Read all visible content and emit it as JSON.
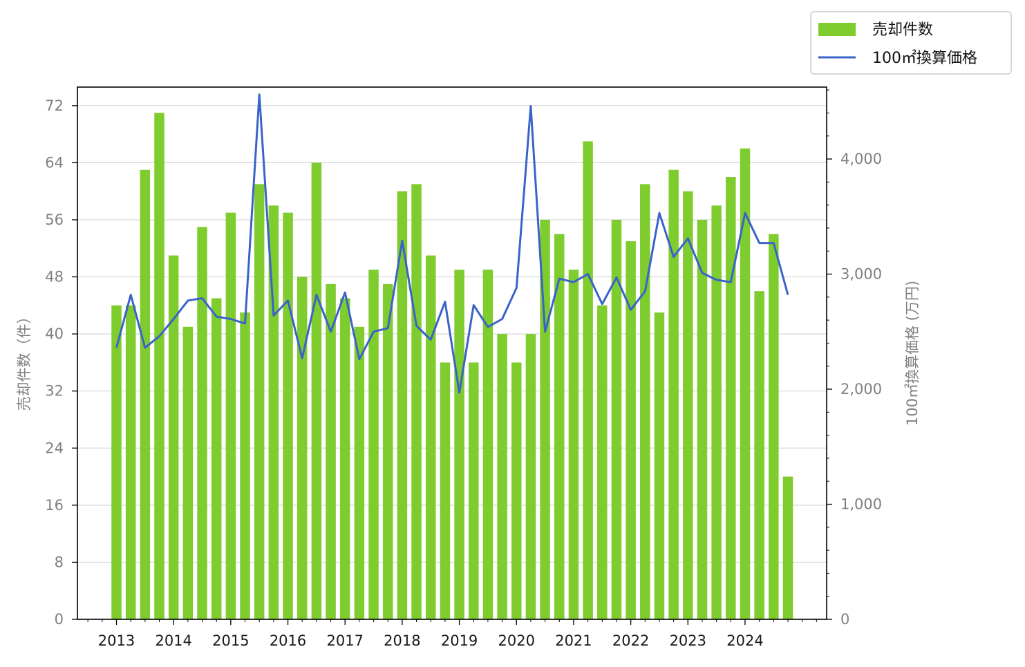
{
  "chart_data": {
    "type": "bar",
    "title": "",
    "xlabel": "",
    "ylabel_left": "売却件数（件）",
    "ylabel_right": "100㎡換算価格 (万円)",
    "x_tick_labels": [
      "2013",
      "2014",
      "2015",
      "2016",
      "2017",
      "2018",
      "2019",
      "2020",
      "2021",
      "2022",
      "2023",
      "2024"
    ],
    "left_ticks": [
      "0",
      "8",
      "16",
      "24",
      "32",
      "40",
      "48",
      "56",
      "64",
      "72"
    ],
    "right_ticks": [
      "0",
      "1,000",
      "2,000",
      "3,000",
      "4,000"
    ],
    "ylim_left": [
      0,
      74.6
    ],
    "ylim_right": [
      0,
      4625
    ],
    "grid": "horizontal",
    "legend_position": "top-right outside",
    "colors": {
      "bar": "#7fcc2e",
      "line": "#3a63c9"
    },
    "periods": [
      "2013Q1",
      "2013Q2",
      "2013Q3",
      "2013Q4",
      "2014Q1",
      "2014Q2",
      "2014Q3",
      "2014Q4",
      "2015Q1",
      "2015Q2",
      "2015Q3",
      "2015Q4",
      "2016Q1",
      "2016Q2",
      "2016Q3",
      "2016Q4",
      "2017Q1",
      "2017Q2",
      "2017Q3",
      "2017Q4",
      "2018Q1",
      "2018Q2",
      "2018Q3",
      "2018Q4",
      "2019Q1",
      "2019Q2",
      "2019Q3",
      "2019Q4",
      "2020Q1",
      "2020Q2",
      "2020Q3",
      "2020Q4",
      "2021Q1",
      "2021Q2",
      "2021Q3",
      "2021Q4",
      "2022Q1",
      "2022Q2",
      "2022Q3",
      "2022Q4",
      "2023Q1",
      "2023Q2",
      "2023Q3",
      "2023Q4",
      "2024Q1",
      "2024Q2",
      "2024Q3",
      "2024Q4"
    ],
    "series": [
      {
        "name": "売却件数",
        "type": "bar",
        "axis": "left",
        "values": [
          44,
          44,
          63,
          71,
          51,
          41,
          55,
          45,
          57,
          43,
          61,
          58,
          57,
          48,
          64,
          47,
          45,
          41,
          49,
          47,
          60,
          61,
          51,
          36,
          49,
          36,
          49,
          40,
          36,
          40,
          56,
          54,
          49,
          67,
          44,
          56,
          53,
          61,
          43,
          63,
          60,
          56,
          58,
          62,
          66,
          46,
          54,
          20
        ]
      },
      {
        "name": "100㎡換算価格",
        "type": "line",
        "axis": "right",
        "values": [
          2360,
          2820,
          2360,
          2460,
          2610,
          2770,
          2790,
          2630,
          2610,
          2570,
          4560,
          2640,
          2770,
          2270,
          2820,
          2500,
          2840,
          2260,
          2500,
          2530,
          3290,
          2550,
          2430,
          2760,
          1970,
          2730,
          2540,
          2610,
          2880,
          4460,
          2500,
          2960,
          2930,
          3000,
          2740,
          2970,
          2690,
          2850,
          3530,
          3150,
          3310,
          3010,
          2950,
          2930,
          3530,
          3270,
          3270,
          2820
        ]
      }
    ]
  }
}
